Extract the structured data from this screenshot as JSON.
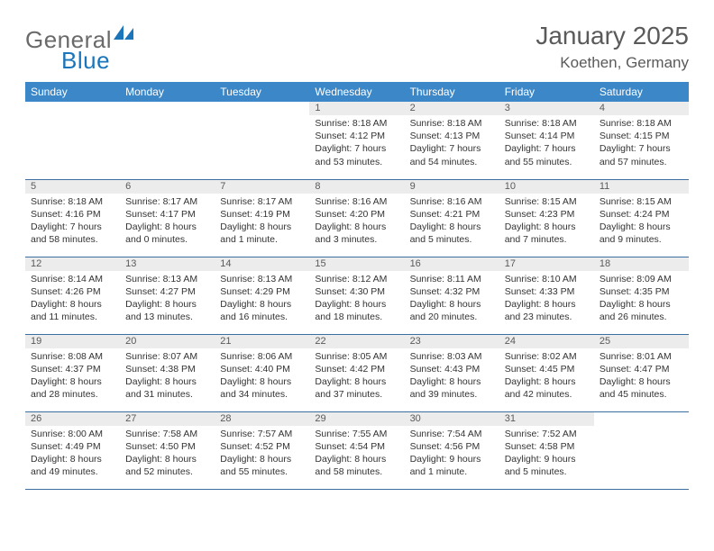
{
  "logo": {
    "text1": "General",
    "text2": "Blue"
  },
  "title": "January 2025",
  "location": "Koethen, Germany",
  "colors": {
    "header_bg": "#3b87c8",
    "header_text": "#ffffff",
    "daynum_bg": "#ececec",
    "rule": "#3b6fa0",
    "logo_gray": "#6a6a6a",
    "logo_blue": "#1b75bb",
    "body_text": "#333333"
  },
  "weekdays": [
    "Sunday",
    "Monday",
    "Tuesday",
    "Wednesday",
    "Thursday",
    "Friday",
    "Saturday"
  ],
  "weeks": [
    [
      {
        "day": "",
        "lines": [
          "",
          "",
          "",
          ""
        ]
      },
      {
        "day": "",
        "lines": [
          "",
          "",
          "",
          ""
        ]
      },
      {
        "day": "",
        "lines": [
          "",
          "",
          "",
          ""
        ]
      },
      {
        "day": "1",
        "lines": [
          "Sunrise: 8:18 AM",
          "Sunset: 4:12 PM",
          "Daylight: 7 hours",
          "and 53 minutes."
        ]
      },
      {
        "day": "2",
        "lines": [
          "Sunrise: 8:18 AM",
          "Sunset: 4:13 PM",
          "Daylight: 7 hours",
          "and 54 minutes."
        ]
      },
      {
        "day": "3",
        "lines": [
          "Sunrise: 8:18 AM",
          "Sunset: 4:14 PM",
          "Daylight: 7 hours",
          "and 55 minutes."
        ]
      },
      {
        "day": "4",
        "lines": [
          "Sunrise: 8:18 AM",
          "Sunset: 4:15 PM",
          "Daylight: 7 hours",
          "and 57 minutes."
        ]
      }
    ],
    [
      {
        "day": "5",
        "lines": [
          "Sunrise: 8:18 AM",
          "Sunset: 4:16 PM",
          "Daylight: 7 hours",
          "and 58 minutes."
        ]
      },
      {
        "day": "6",
        "lines": [
          "Sunrise: 8:17 AM",
          "Sunset: 4:17 PM",
          "Daylight: 8 hours",
          "and 0 minutes."
        ]
      },
      {
        "day": "7",
        "lines": [
          "Sunrise: 8:17 AM",
          "Sunset: 4:19 PM",
          "Daylight: 8 hours",
          "and 1 minute."
        ]
      },
      {
        "day": "8",
        "lines": [
          "Sunrise: 8:16 AM",
          "Sunset: 4:20 PM",
          "Daylight: 8 hours",
          "and 3 minutes."
        ]
      },
      {
        "day": "9",
        "lines": [
          "Sunrise: 8:16 AM",
          "Sunset: 4:21 PM",
          "Daylight: 8 hours",
          "and 5 minutes."
        ]
      },
      {
        "day": "10",
        "lines": [
          "Sunrise: 8:15 AM",
          "Sunset: 4:23 PM",
          "Daylight: 8 hours",
          "and 7 minutes."
        ]
      },
      {
        "day": "11",
        "lines": [
          "Sunrise: 8:15 AM",
          "Sunset: 4:24 PM",
          "Daylight: 8 hours",
          "and 9 minutes."
        ]
      }
    ],
    [
      {
        "day": "12",
        "lines": [
          "Sunrise: 8:14 AM",
          "Sunset: 4:26 PM",
          "Daylight: 8 hours",
          "and 11 minutes."
        ]
      },
      {
        "day": "13",
        "lines": [
          "Sunrise: 8:13 AM",
          "Sunset: 4:27 PM",
          "Daylight: 8 hours",
          "and 13 minutes."
        ]
      },
      {
        "day": "14",
        "lines": [
          "Sunrise: 8:13 AM",
          "Sunset: 4:29 PM",
          "Daylight: 8 hours",
          "and 16 minutes."
        ]
      },
      {
        "day": "15",
        "lines": [
          "Sunrise: 8:12 AM",
          "Sunset: 4:30 PM",
          "Daylight: 8 hours",
          "and 18 minutes."
        ]
      },
      {
        "day": "16",
        "lines": [
          "Sunrise: 8:11 AM",
          "Sunset: 4:32 PM",
          "Daylight: 8 hours",
          "and 20 minutes."
        ]
      },
      {
        "day": "17",
        "lines": [
          "Sunrise: 8:10 AM",
          "Sunset: 4:33 PM",
          "Daylight: 8 hours",
          "and 23 minutes."
        ]
      },
      {
        "day": "18",
        "lines": [
          "Sunrise: 8:09 AM",
          "Sunset: 4:35 PM",
          "Daylight: 8 hours",
          "and 26 minutes."
        ]
      }
    ],
    [
      {
        "day": "19",
        "lines": [
          "Sunrise: 8:08 AM",
          "Sunset: 4:37 PM",
          "Daylight: 8 hours",
          "and 28 minutes."
        ]
      },
      {
        "day": "20",
        "lines": [
          "Sunrise: 8:07 AM",
          "Sunset: 4:38 PM",
          "Daylight: 8 hours",
          "and 31 minutes."
        ]
      },
      {
        "day": "21",
        "lines": [
          "Sunrise: 8:06 AM",
          "Sunset: 4:40 PM",
          "Daylight: 8 hours",
          "and 34 minutes."
        ]
      },
      {
        "day": "22",
        "lines": [
          "Sunrise: 8:05 AM",
          "Sunset: 4:42 PM",
          "Daylight: 8 hours",
          "and 37 minutes."
        ]
      },
      {
        "day": "23",
        "lines": [
          "Sunrise: 8:03 AM",
          "Sunset: 4:43 PM",
          "Daylight: 8 hours",
          "and 39 minutes."
        ]
      },
      {
        "day": "24",
        "lines": [
          "Sunrise: 8:02 AM",
          "Sunset: 4:45 PM",
          "Daylight: 8 hours",
          "and 42 minutes."
        ]
      },
      {
        "day": "25",
        "lines": [
          "Sunrise: 8:01 AM",
          "Sunset: 4:47 PM",
          "Daylight: 8 hours",
          "and 45 minutes."
        ]
      }
    ],
    [
      {
        "day": "26",
        "lines": [
          "Sunrise: 8:00 AM",
          "Sunset: 4:49 PM",
          "Daylight: 8 hours",
          "and 49 minutes."
        ]
      },
      {
        "day": "27",
        "lines": [
          "Sunrise: 7:58 AM",
          "Sunset: 4:50 PM",
          "Daylight: 8 hours",
          "and 52 minutes."
        ]
      },
      {
        "day": "28",
        "lines": [
          "Sunrise: 7:57 AM",
          "Sunset: 4:52 PM",
          "Daylight: 8 hours",
          "and 55 minutes."
        ]
      },
      {
        "day": "29",
        "lines": [
          "Sunrise: 7:55 AM",
          "Sunset: 4:54 PM",
          "Daylight: 8 hours",
          "and 58 minutes."
        ]
      },
      {
        "day": "30",
        "lines": [
          "Sunrise: 7:54 AM",
          "Sunset: 4:56 PM",
          "Daylight: 9 hours",
          "and 1 minute."
        ]
      },
      {
        "day": "31",
        "lines": [
          "Sunrise: 7:52 AM",
          "Sunset: 4:58 PM",
          "Daylight: 9 hours",
          "and 5 minutes."
        ]
      },
      {
        "day": "",
        "lines": [
          "",
          "",
          "",
          ""
        ]
      }
    ]
  ]
}
